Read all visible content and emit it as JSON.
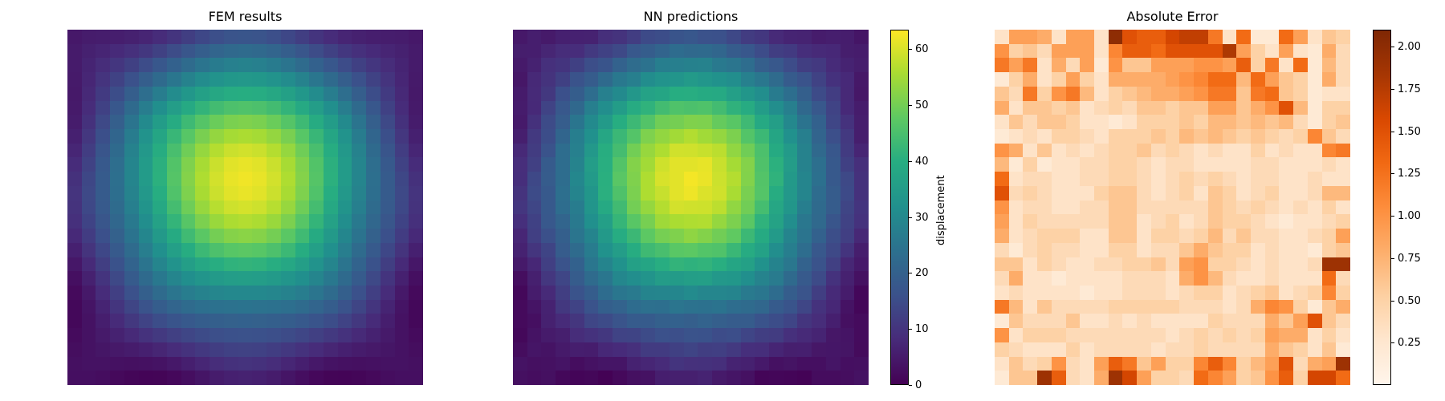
{
  "chart_data": [
    {
      "type": "heatmap",
      "title": "FEM results",
      "grid_size": [
        25,
        25
      ],
      "field": "displacement",
      "colormap": "viridis",
      "vmin": 0,
      "vmax": 63.5
    },
    {
      "type": "heatmap",
      "title": "NN predictions",
      "grid_size": [
        25,
        25
      ],
      "field": "displacement",
      "colormap": "viridis",
      "vmin": 0,
      "vmax": 63.5,
      "colorbar": {
        "label": "displacement",
        "ticks": [
          0,
          10,
          20,
          30,
          40,
          50,
          60
        ]
      }
    },
    {
      "type": "heatmap",
      "title": "Absolute Error",
      "grid_size": [
        25,
        25
      ],
      "field": "absolute error",
      "colormap": "oranges",
      "vmin": 0,
      "vmax": 2.1,
      "colorbar": {
        "label": "",
        "ticks": [
          0.25,
          0.5,
          0.75,
          1.0,
          1.25,
          1.5,
          1.75,
          2.0
        ],
        "tick_labels": [
          "0.25",
          "0.50",
          "0.75",
          "1.00",
          "1.25",
          "1.50",
          "1.75",
          "2.00"
        ]
      },
      "values": [
        [
          0.3,
          0.9,
          0.9,
          0.8,
          0.3,
          0.9,
          0.9,
          0.3,
          2.0,
          1.5,
          1.4,
          1.4,
          1.6,
          1.7,
          1.7,
          1.2,
          0.3,
          1.3,
          0.2,
          0.2,
          1.3,
          0.9,
          0.3,
          0.6,
          0.5
        ],
        [
          1.0,
          0.5,
          0.6,
          0.4,
          0.9,
          0.9,
          0.9,
          0.3,
          1.1,
          1.4,
          1.4,
          1.3,
          1.5,
          1.5,
          1.5,
          1.5,
          1.8,
          0.9,
          0.5,
          0.3,
          0.9,
          0.3,
          0.2,
          0.8,
          0.4
        ],
        [
          1.2,
          0.9,
          1.2,
          0.3,
          0.8,
          0.4,
          0.9,
          0.2,
          1.0,
          0.6,
          0.6,
          0.9,
          0.9,
          0.9,
          1.0,
          1.0,
          0.9,
          1.4,
          0.5,
          1.2,
          0.3,
          1.3,
          0.2,
          0.7,
          0.4
        ],
        [
          0.2,
          0.5,
          0.8,
          0.3,
          0.5,
          0.9,
          0.5,
          0.3,
          0.8,
          0.8,
          0.8,
          0.8,
          0.9,
          1.0,
          1.1,
          1.3,
          1.3,
          0.7,
          1.3,
          0.9,
          0.6,
          0.5,
          0.2,
          0.8,
          0.4
        ],
        [
          0.6,
          0.4,
          1.2,
          0.5,
          1.0,
          1.2,
          0.7,
          0.3,
          0.5,
          0.6,
          0.7,
          0.8,
          0.8,
          0.9,
          1.0,
          1.2,
          1.2,
          0.6,
          1.2,
          1.3,
          0.6,
          0.5,
          0.2,
          0.3,
          0.3
        ],
        [
          0.8,
          0.3,
          0.6,
          0.6,
          0.5,
          0.6,
          0.3,
          0.4,
          0.5,
          0.4,
          0.6,
          0.6,
          0.5,
          0.6,
          0.6,
          0.9,
          0.9,
          0.6,
          0.8,
          1.0,
          1.5,
          0.7,
          0.2,
          0.5,
          0.5
        ],
        [
          0.3,
          0.6,
          0.4,
          0.6,
          0.6,
          0.5,
          0.3,
          0.3,
          0.2,
          0.3,
          0.5,
          0.5,
          0.5,
          0.6,
          0.5,
          0.7,
          0.7,
          0.6,
          0.7,
          0.6,
          0.7,
          0.4,
          0.2,
          0.5,
          0.6
        ],
        [
          0.2,
          0.3,
          0.4,
          0.3,
          0.5,
          0.5,
          0.4,
          0.3,
          0.5,
          0.5,
          0.5,
          0.6,
          0.5,
          0.7,
          0.6,
          0.7,
          0.6,
          0.5,
          0.6,
          0.5,
          0.4,
          0.5,
          1.1,
          0.6,
          0.4
        ],
        [
          1.0,
          0.8,
          0.3,
          0.6,
          0.3,
          0.4,
          0.3,
          0.4,
          0.5,
          0.5,
          0.6,
          0.4,
          0.5,
          0.4,
          0.3,
          0.4,
          0.3,
          0.3,
          0.5,
          0.3,
          0.4,
          0.3,
          0.3,
          1.1,
          1.2
        ],
        [
          0.7,
          0.2,
          0.5,
          0.2,
          0.3,
          0.3,
          0.4,
          0.4,
          0.5,
          0.5,
          0.4,
          0.3,
          0.4,
          0.4,
          0.3,
          0.3,
          0.3,
          0.3,
          0.4,
          0.4,
          0.3,
          0.3,
          0.3,
          0.4,
          0.3
        ],
        [
          1.3,
          0.3,
          0.4,
          0.4,
          0.3,
          0.3,
          0.4,
          0.4,
          0.5,
          0.5,
          0.4,
          0.3,
          0.4,
          0.5,
          0.4,
          0.5,
          0.4,
          0.3,
          0.4,
          0.4,
          0.3,
          0.3,
          0.4,
          0.3,
          0.3
        ],
        [
          1.5,
          0.4,
          0.5,
          0.4,
          0.3,
          0.3,
          0.3,
          0.5,
          0.6,
          0.6,
          0.4,
          0.3,
          0.4,
          0.5,
          0.3,
          0.6,
          0.5,
          0.3,
          0.4,
          0.5,
          0.3,
          0.3,
          0.4,
          0.7,
          0.7
        ],
        [
          1.0,
          0.3,
          0.4,
          0.4,
          0.3,
          0.3,
          0.4,
          0.4,
          0.6,
          0.6,
          0.4,
          0.4,
          0.4,
          0.4,
          0.4,
          0.6,
          0.5,
          0.4,
          0.5,
          0.4,
          0.3,
          0.4,
          0.3,
          0.5,
          0.3
        ],
        [
          0.9,
          0.3,
          0.5,
          0.4,
          0.4,
          0.4,
          0.4,
          0.4,
          0.6,
          0.6,
          0.3,
          0.4,
          0.5,
          0.3,
          0.4,
          0.6,
          0.5,
          0.5,
          0.4,
          0.3,
          0.2,
          0.3,
          0.3,
          0.4,
          0.5
        ],
        [
          0.8,
          0.3,
          0.4,
          0.5,
          0.5,
          0.5,
          0.3,
          0.3,
          0.6,
          0.6,
          0.3,
          0.5,
          0.5,
          0.4,
          0.5,
          0.7,
          0.4,
          0.6,
          0.4,
          0.4,
          0.3,
          0.3,
          0.4,
          0.5,
          0.9
        ],
        [
          0.4,
          0.2,
          0.4,
          0.5,
          0.4,
          0.4,
          0.3,
          0.3,
          0.5,
          0.5,
          0.3,
          0.4,
          0.4,
          0.6,
          0.8,
          0.6,
          0.5,
          0.5,
          0.3,
          0.4,
          0.3,
          0.3,
          0.2,
          0.5,
          0.6
        ],
        [
          0.6,
          0.6,
          0.3,
          0.5,
          0.4,
          0.3,
          0.3,
          0.4,
          0.4,
          0.5,
          0.5,
          0.6,
          0.4,
          0.9,
          1.0,
          0.5,
          0.5,
          0.4,
          0.3,
          0.4,
          0.3,
          0.3,
          0.4,
          1.9,
          1.9
        ],
        [
          0.4,
          0.8,
          0.3,
          0.3,
          0.2,
          0.3,
          0.3,
          0.3,
          0.3,
          0.4,
          0.4,
          0.4,
          0.3,
          0.8,
          1.0,
          0.7,
          0.4,
          0.3,
          0.3,
          0.4,
          0.3,
          0.3,
          0.3,
          1.3,
          0.4
        ],
        [
          0.3,
          0.4,
          0.3,
          0.3,
          0.3,
          0.3,
          0.2,
          0.3,
          0.3,
          0.4,
          0.4,
          0.4,
          0.3,
          0.4,
          0.5,
          0.5,
          0.3,
          0.4,
          0.5,
          0.6,
          0.3,
          0.4,
          0.5,
          1.1,
          0.5
        ],
        [
          1.2,
          0.7,
          0.3,
          0.6,
          0.4,
          0.4,
          0.4,
          0.4,
          0.5,
          0.5,
          0.5,
          0.5,
          0.5,
          0.4,
          0.4,
          0.4,
          0.3,
          0.4,
          0.8,
          1.1,
          1.0,
          0.5,
          0.2,
          0.6,
          0.8
        ],
        [
          0.2,
          0.6,
          0.4,
          0.4,
          0.4,
          0.6,
          0.3,
          0.3,
          0.4,
          0.3,
          0.4,
          0.3,
          0.3,
          0.3,
          0.3,
          0.5,
          0.4,
          0.4,
          0.4,
          0.8,
          0.6,
          0.9,
          1.5,
          0.6,
          0.4
        ],
        [
          1.0,
          0.3,
          0.5,
          0.5,
          0.5,
          0.4,
          0.4,
          0.4,
          0.4,
          0.4,
          0.4,
          0.4,
          0.3,
          0.4,
          0.5,
          0.4,
          0.5,
          0.4,
          0.5,
          0.9,
          0.8,
          0.8,
          0.3,
          0.5,
          0.3
        ],
        [
          0.5,
          0.4,
          0.3,
          0.3,
          0.3,
          0.5,
          0.3,
          0.4,
          0.4,
          0.4,
          0.4,
          0.3,
          0.4,
          0.4,
          0.5,
          0.4,
          0.4,
          0.4,
          0.4,
          0.8,
          0.6,
          0.5,
          0.3,
          0.6,
          0.2
        ],
        [
          0.3,
          0.6,
          0.4,
          0.5,
          1.0,
          0.4,
          0.3,
          0.9,
          1.4,
          1.2,
          0.6,
          0.9,
          0.5,
          0.5,
          1.1,
          1.4,
          1.1,
          0.5,
          0.7,
          0.9,
          1.5,
          0.4,
          0.8,
          0.9,
          1.9
        ],
        [
          0.2,
          0.6,
          0.6,
          1.9,
          1.4,
          0.4,
          0.3,
          0.8,
          1.9,
          1.6,
          0.9,
          0.5,
          0.5,
          0.4,
          1.3,
          1.1,
          0.9,
          0.5,
          0.6,
          1.0,
          1.4,
          0.5,
          1.6,
          1.6,
          1.3
        ]
      ]
    }
  ]
}
